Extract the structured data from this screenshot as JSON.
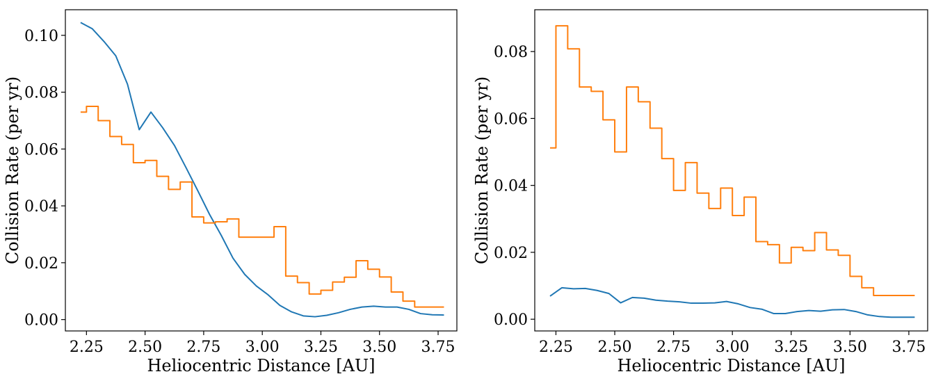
{
  "colors": {
    "series_1": "#1f77b4",
    "series_2": "#ff7f0e"
  },
  "chart_data": [
    {
      "type": "line",
      "xlabel": "Heliocentric Distance [AU]",
      "ylabel": "Collision Rate (per yr)",
      "xlim": [
        2.16,
        3.83
      ],
      "ylim": [
        -0.004,
        0.109
      ],
      "xticks": [
        2.25,
        2.5,
        2.75,
        3.0,
        3.25,
        3.5,
        3.75
      ],
      "xtick_labels": [
        "2.25",
        "2.50",
        "2.75",
        "3.00",
        "3.25",
        "3.50",
        "3.75"
      ],
      "yticks": [
        0.0,
        0.02,
        0.04,
        0.06,
        0.08,
        0.1
      ],
      "ytick_labels": [
        "0.00",
        "0.02",
        "0.04",
        "0.06",
        "0.08",
        "0.10"
      ],
      "grid": false,
      "series": [
        {
          "style": "line",
          "color": "#1f77b4",
          "x": [
            2.225,
            2.275,
            2.325,
            2.375,
            2.425,
            2.475,
            2.525,
            2.575,
            2.625,
            2.675,
            2.725,
            2.775,
            2.825,
            2.875,
            2.925,
            2.975,
            3.025,
            3.075,
            3.125,
            3.175,
            3.225,
            3.275,
            3.325,
            3.375,
            3.425,
            3.475,
            3.525,
            3.575,
            3.625,
            3.675,
            3.725,
            3.775
          ],
          "y": [
            0.1045,
            0.1023,
            0.0978,
            0.0928,
            0.0828,
            0.0668,
            0.073,
            0.0675,
            0.0613,
            0.0534,
            0.0453,
            0.037,
            0.0296,
            0.0216,
            0.0159,
            0.0118,
            0.0087,
            0.005,
            0.0027,
            0.0013,
            0.001,
            0.0015,
            0.0024,
            0.0036,
            0.0044,
            0.0047,
            0.0044,
            0.0044,
            0.0036,
            0.0021,
            0.0017,
            0.0016
          ]
        },
        {
          "style": "step",
          "color": "#ff7f0e",
          "x": [
            2.225,
            2.275,
            2.325,
            2.375,
            2.425,
            2.475,
            2.525,
            2.575,
            2.625,
            2.675,
            2.725,
            2.775,
            2.825,
            2.875,
            2.925,
            2.975,
            3.025,
            3.075,
            3.125,
            3.175,
            3.225,
            3.275,
            3.325,
            3.375,
            3.425,
            3.475,
            3.525,
            3.575,
            3.625,
            3.675,
            3.725,
            3.775
          ],
          "y": [
            0.073,
            0.075,
            0.07,
            0.0644,
            0.0616,
            0.0552,
            0.056,
            0.0504,
            0.0458,
            0.0484,
            0.0361,
            0.034,
            0.0344,
            0.0354,
            0.029,
            0.029,
            0.029,
            0.0327,
            0.0153,
            0.013,
            0.009,
            0.0103,
            0.0132,
            0.0149,
            0.0207,
            0.0177,
            0.015,
            0.0097,
            0.0065,
            0.0044,
            0.0044,
            0.0044
          ]
        }
      ]
    },
    {
      "type": "line",
      "xlabel": "Heliocentric Distance [AU]",
      "ylabel": "Collision Rate (per yr)",
      "xlim": [
        2.16,
        3.83
      ],
      "ylim": [
        -0.0035,
        0.0925
      ],
      "xticks": [
        2.25,
        2.5,
        2.75,
        3.0,
        3.25,
        3.5,
        3.75
      ],
      "xtick_labels": [
        "2.25",
        "2.50",
        "2.75",
        "3.00",
        "3.25",
        "3.50",
        "3.75"
      ],
      "yticks": [
        0.0,
        0.02,
        0.04,
        0.06,
        0.08
      ],
      "ytick_labels": [
        "0.00",
        "0.02",
        "0.04",
        "0.06",
        "0.08"
      ],
      "grid": false,
      "series": [
        {
          "style": "line",
          "color": "#1f77b4",
          "x": [
            2.225,
            2.275,
            2.325,
            2.375,
            2.425,
            2.475,
            2.525,
            2.575,
            2.625,
            2.675,
            2.725,
            2.775,
            2.825,
            2.875,
            2.925,
            2.975,
            3.025,
            3.075,
            3.125,
            3.175,
            3.225,
            3.275,
            3.325,
            3.375,
            3.425,
            3.475,
            3.525,
            3.575,
            3.625,
            3.675,
            3.725,
            3.775
          ],
          "y": [
            0.0069,
            0.0094,
            0.0091,
            0.0092,
            0.0086,
            0.0077,
            0.0049,
            0.0065,
            0.0063,
            0.0057,
            0.0054,
            0.0052,
            0.0048,
            0.0048,
            0.0049,
            0.0053,
            0.0046,
            0.0035,
            0.003,
            0.0017,
            0.0017,
            0.0023,
            0.0026,
            0.0024,
            0.0028,
            0.0029,
            0.0023,
            0.0013,
            0.0008,
            0.0006,
            0.0006,
            0.0006
          ]
        },
        {
          "style": "step",
          "color": "#ff7f0e",
          "x": [
            2.225,
            2.275,
            2.325,
            2.375,
            2.425,
            2.475,
            2.525,
            2.575,
            2.625,
            2.675,
            2.725,
            2.775,
            2.825,
            2.875,
            2.925,
            2.975,
            3.025,
            3.075,
            3.125,
            3.175,
            3.225,
            3.275,
            3.325,
            3.375,
            3.425,
            3.475,
            3.525,
            3.575,
            3.625,
            3.675,
            3.725,
            3.775
          ],
          "y": [
            0.0512,
            0.0877,
            0.0808,
            0.0694,
            0.0681,
            0.0596,
            0.05,
            0.0694,
            0.065,
            0.0571,
            0.048,
            0.0385,
            0.0468,
            0.0377,
            0.0331,
            0.0392,
            0.031,
            0.0365,
            0.0232,
            0.0223,
            0.0168,
            0.0215,
            0.0205,
            0.0259,
            0.0207,
            0.0191,
            0.0128,
            0.0094,
            0.0071,
            0.0071,
            0.0071,
            0.0071
          ]
        }
      ]
    }
  ]
}
